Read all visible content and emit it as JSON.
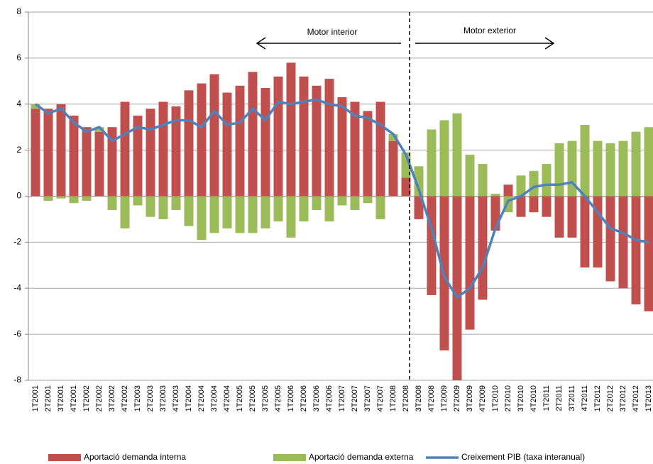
{
  "chart_data": {
    "type": "bar",
    "categories": [
      "1T2001",
      "2T2001",
      "3T2001",
      "4T2001",
      "1T2002",
      "2T2002",
      "3T2002",
      "4T2002",
      "1T2003",
      "2T2003",
      "3T2003",
      "4T2003",
      "1T2004",
      "2T2004",
      "3T2004",
      "4T2004",
      "1T2005",
      "2T2005",
      "3T2005",
      "4T2005",
      "1T2006",
      "2T2006",
      "3T2006",
      "4T2006",
      "1T2007",
      "2T2007",
      "3T2007",
      "4T2007",
      "1T2008",
      "2T2008",
      "3T2008",
      "4T2008",
      "1T2009",
      "2T2009",
      "3T2009",
      "4T2009",
      "1T2010",
      "2T2010",
      "3T2010",
      "4T2010",
      "1T2011",
      "2T2011",
      "3T2011",
      "4T2011",
      "1T2012",
      "2T2012",
      "3T2012",
      "4T2012",
      "1T2013"
    ],
    "series": [
      {
        "name": "Aportació demanda interna",
        "color": "#c0504d",
        "stacked": true,
        "values": [
          3.8,
          3.8,
          4.0,
          3.5,
          3.0,
          2.8,
          3.0,
          4.1,
          3.5,
          3.8,
          4.1,
          3.9,
          4.6,
          4.9,
          5.3,
          4.5,
          4.8,
          5.4,
          4.7,
          5.2,
          5.8,
          5.2,
          4.8,
          5.1,
          4.3,
          4.1,
          3.7,
          4.1,
          2.4,
          0.8,
          -1.0,
          -4.3,
          -6.7,
          -8.0,
          -5.8,
          -4.5,
          -1.5,
          0.5,
          -0.9,
          -0.7,
          -0.9,
          -1.8,
          -1.8,
          -3.1,
          -3.1,
          -3.7,
          -4.0,
          -4.7,
          -5.0
        ]
      },
      {
        "name": "Aportació demanda externa",
        "color": "#9bbb59",
        "stacked": true,
        "values": [
          0.2,
          -0.2,
          -0.1,
          -0.3,
          -0.2,
          0.2,
          -0.6,
          -1.4,
          -0.4,
          -0.9,
          -1.0,
          -0.6,
          -1.3,
          -1.9,
          -1.6,
          -1.4,
          -1.6,
          -1.6,
          -1.4,
          -1.1,
          -1.8,
          -1.1,
          -0.6,
          -1.1,
          -0.4,
          -0.6,
          -0.3,
          -1.0,
          0.3,
          1.1,
          1.3,
          2.9,
          3.3,
          3.6,
          1.8,
          1.4,
          0.1,
          -0.7,
          0.9,
          1.1,
          1.4,
          2.3,
          2.4,
          3.1,
          2.4,
          2.3,
          2.4,
          2.8,
          3.0
        ]
      },
      {
        "name": "Creixement PIB (taxa interanual)",
        "color": "#4f81bd",
        "line": true,
        "values": [
          4.0,
          3.6,
          3.8,
          3.2,
          2.8,
          3.0,
          2.4,
          2.7,
          3.0,
          2.9,
          3.1,
          3.3,
          3.3,
          3.0,
          3.7,
          3.1,
          3.2,
          3.8,
          3.3,
          4.1,
          4.0,
          4.1,
          4.2,
          4.0,
          3.9,
          3.5,
          3.4,
          3.1,
          2.7,
          1.8,
          0.3,
          -1.4,
          -3.5,
          -4.4,
          -4.0,
          -3.1,
          -1.4,
          -0.2,
          0.0,
          0.4,
          0.5,
          0.5,
          0.6,
          0.0,
          -0.7,
          -1.4,
          -1.6,
          -1.9,
          -2.0
        ]
      }
    ],
    "ylim": [
      -8,
      8
    ],
    "yticks": [
      -8,
      -6,
      -4,
      -2,
      0,
      2,
      4,
      6,
      8
    ],
    "grid": true,
    "legend": "bottom",
    "annotations": [
      "Motor interior",
      "Motor exterior"
    ]
  }
}
